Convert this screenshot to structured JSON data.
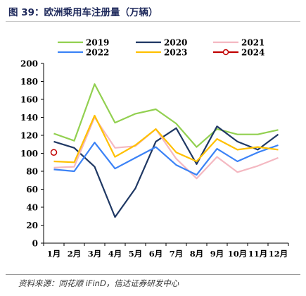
{
  "header": {
    "title": "图 39：欧洲乘用车注册量（万辆）"
  },
  "footer": {
    "source": "资料来源：同花顺 iFinD，信达证券研发中心"
  },
  "chart_data": {
    "type": "line",
    "title": "",
    "xlabel": "",
    "ylabel": "",
    "categories": [
      "1月",
      "2月",
      "3月",
      "4月",
      "5月",
      "6月",
      "7月",
      "8月",
      "9月",
      "10月",
      "11月",
      "12月"
    ],
    "ylim": [
      0,
      200
    ],
    "yticks": [
      0,
      20,
      40,
      60,
      80,
      100,
      120,
      140,
      160,
      180,
      200
    ],
    "grid": false,
    "legend_position": "top",
    "series": [
      {
        "name": "2019",
        "color": "#92d050",
        "marker": "none",
        "values": [
          122,
          114,
          177,
          134,
          144,
          149,
          133,
          107,
          127,
          121,
          121,
          126
        ]
      },
      {
        "name": "2020",
        "color": "#1f3864",
        "marker": "none",
        "values": [
          113,
          106,
          85,
          29,
          61,
          113,
          128,
          88,
          130,
          113,
          104,
          121
        ]
      },
      {
        "name": "2021",
        "color": "#f4b8c1",
        "marker": "none",
        "values": [
          84,
          85,
          140,
          106,
          108,
          127,
          94,
          72,
          96,
          79,
          86,
          95
        ]
      },
      {
        "name": "2022",
        "color": "#3b82f6",
        "marker": "none",
        "values": [
          82,
          80,
          112,
          83,
          95,
          107,
          87,
          76,
          105,
          91,
          101,
          109
        ]
      },
      {
        "name": "2023",
        "color": "#ffc000",
        "marker": "none",
        "values": [
          91,
          90,
          142,
          96,
          109,
          127,
          101,
          91,
          116,
          104,
          107,
          104
        ]
      },
      {
        "name": "2024",
        "color": "#c00000",
        "marker": "circle",
        "values": [
          101,
          null,
          null,
          null,
          null,
          null,
          null,
          null,
          null,
          null,
          null,
          null
        ]
      }
    ]
  }
}
